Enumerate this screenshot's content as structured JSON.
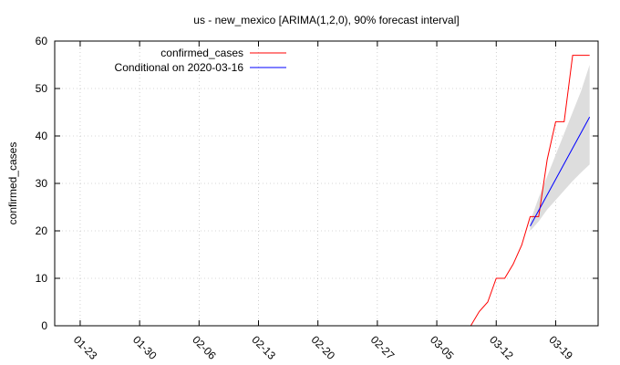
{
  "chart_data": {
    "type": "line",
    "title": "us - new_mexico [ARIMA(1,2,0), 90% forecast interval]",
    "xlabel": "",
    "ylabel": "confirmed_cases",
    "ylim": [
      0,
      60
    ],
    "yticks": [
      0,
      10,
      20,
      30,
      40,
      50,
      60
    ],
    "xlim": [
      "2020-01-20",
      "2020-03-24"
    ],
    "xticks": [
      "01-23",
      "01-30",
      "02-06",
      "02-13",
      "02-20",
      "02-27",
      "03-05",
      "03-12",
      "03-19"
    ],
    "grid": true,
    "legend_position": "top-left",
    "series": [
      {
        "name": "confirmed_cases",
        "color": "#ff0000",
        "style": "step",
        "x": [
          "2020-01-22",
          "2020-03-09",
          "2020-03-10",
          "2020-03-11",
          "2020-03-12",
          "2020-03-13",
          "2020-03-14",
          "2020-03-15",
          "2020-03-16",
          "2020-03-17",
          "2020-03-18",
          "2020-03-19",
          "2020-03-20",
          "2020-03-21",
          "2020-03-22",
          "2020-03-23"
        ],
        "values": [
          0,
          0,
          3,
          5,
          10,
          10,
          13,
          17,
          23,
          23,
          35,
          43,
          43,
          57,
          57,
          57
        ]
      },
      {
        "name": "Conditional on 2020-03-16",
        "color": "#0000ff",
        "x": [
          "2020-03-16",
          "2020-03-23"
        ],
        "values": [
          21,
          44
        ],
        "interval": {
          "label": "90% forecast interval",
          "color": "#dddddd",
          "x": [
            "2020-03-16",
            "2020-03-17",
            "2020-03-18",
            "2020-03-19",
            "2020-03-20",
            "2020-03-21",
            "2020-03-22",
            "2020-03-23"
          ],
          "lower": [
            20,
            22,
            24.5,
            26.5,
            28.5,
            30.5,
            32.3,
            34
          ],
          "upper": [
            22,
            27,
            31.5,
            36,
            40.5,
            45,
            49.5,
            55
          ]
        }
      }
    ]
  }
}
